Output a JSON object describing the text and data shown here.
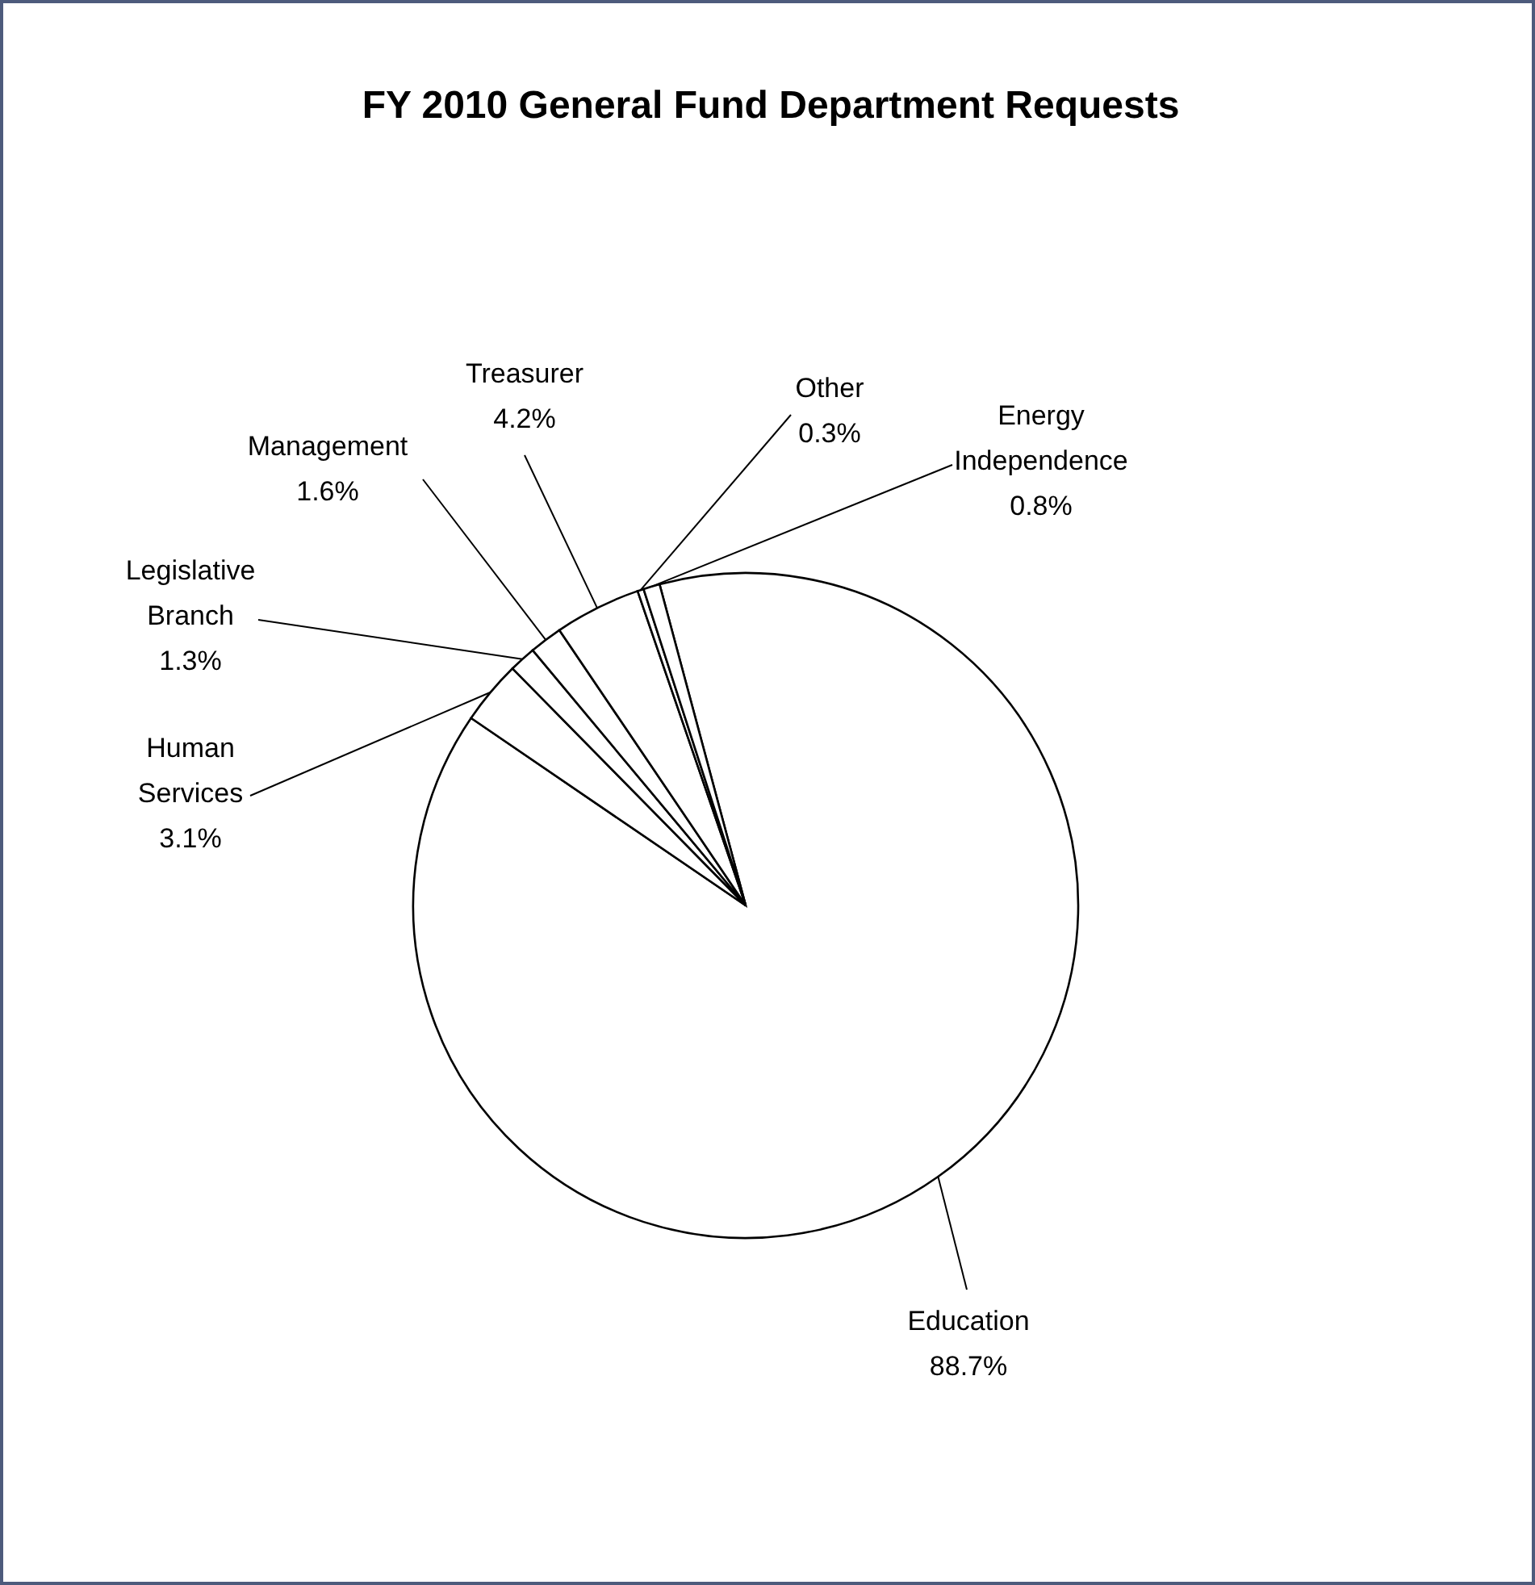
{
  "chart_data": {
    "type": "pie",
    "title": "FY 2010 General Fund Department Requests",
    "categories": [
      "Education",
      "Human Services",
      "Legislative Branch",
      "Management",
      "Treasurer",
      "Other",
      "Energy Independence"
    ],
    "values": [
      88.7,
      3.1,
      1.3,
      1.6,
      4.2,
      0.3,
      0.8
    ],
    "value_labels": [
      "88.7%",
      "3.1%",
      "1.3%",
      "1.6%",
      "4.2%",
      "0.3%",
      "0.8%"
    ],
    "colors": [
      "#ffffff",
      "#ffffff",
      "#ffffff",
      "#ffffff",
      "#ffffff",
      "#ffffff",
      "#ffffff"
    ]
  }
}
